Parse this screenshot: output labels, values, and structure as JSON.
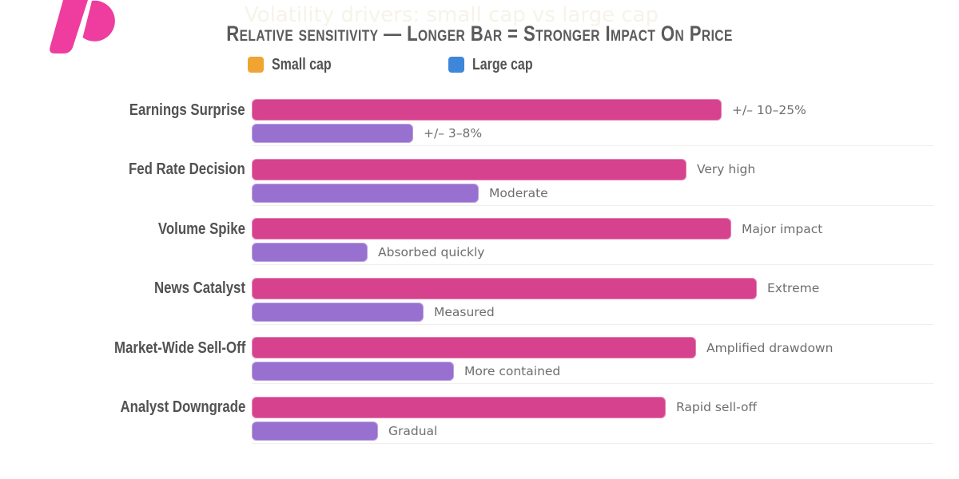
{
  "header": {
    "watermark_subtitle": "Volatility drivers: small cap vs large cap",
    "title": "Relative sensitivity — Longer Bar = Stronger Impact On Price"
  },
  "legend": {
    "small_cap_label": "Small cap",
    "large_cap_label": "Large cap",
    "small_cap_swatch_color": "#f0a433",
    "large_cap_swatch_color": "#3d86da"
  },
  "colors": {
    "small_cap_bar": "#d6428e",
    "large_cap_bar": "#9770d0",
    "logo_pink": "#ee3d9e",
    "title_text": "#5a5a5a",
    "category_label_text": "#525252",
    "annotation_text": "#6e6e6e",
    "watermark_text": "#f6f3e8",
    "gridline": "#f1efeb"
  },
  "chart_data": {
    "type": "bar",
    "orientation": "horizontal",
    "title": "Relative sensitivity — Longer Bar = Stronger Impact On Price",
    "subtitle": "Volatility drivers: small cap vs large cap",
    "categories": [
      "Earnings Surprise",
      "Fed Rate Decision",
      "Volume Spike",
      "News Catalyst",
      "Market-Wide Sell-Off",
      "Analyst Downgrade"
    ],
    "series": [
      {
        "name": "Small cap",
        "color": "#d6428e",
        "values": [
          9.3,
          8.6,
          9.5,
          10.0,
          8.8,
          8.2
        ],
        "annotations": [
          "+/– 10–25%",
          "Very high",
          "Major impact",
          "Extreme",
          "Amplified drawdown",
          "Rapid sell-off"
        ]
      },
      {
        "name": "Large cap",
        "color": "#9770d0",
        "values": [
          3.2,
          4.5,
          2.3,
          3.4,
          4.0,
          2.5
        ],
        "annotations": [
          "+/– 3–8%",
          "Moderate",
          "Absorbed quickly",
          "Measured",
          "More contained",
          "Gradual"
        ]
      }
    ],
    "xlim": [
      0,
      10
    ],
    "grid": "faint horizontal separators between category groups",
    "legend_position": "top",
    "note": "legend swatches are orange/blue but bars render pink/purple"
  }
}
